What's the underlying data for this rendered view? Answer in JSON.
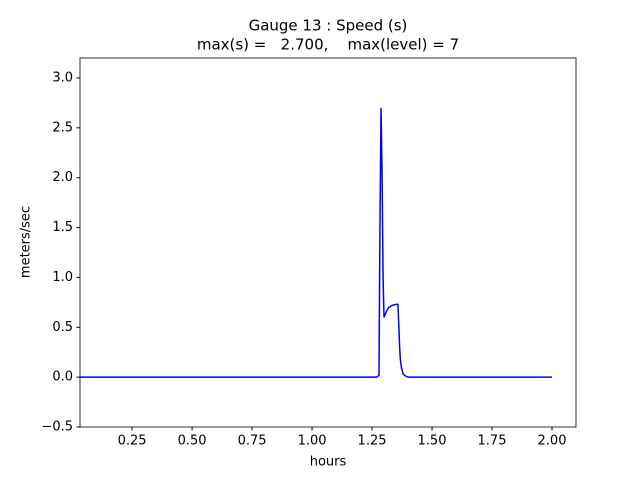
{
  "chart_data": {
    "type": "line",
    "title": "Gauge 13 : Speed (s)",
    "subtitle": "max(s) =   2.700,    max(level) = 7",
    "x_label": "hours",
    "y_label": "meters/sec",
    "x": [
      0.033,
      0.5,
      1.0,
      1.27,
      1.279,
      1.283,
      1.2875,
      1.292,
      1.296,
      1.3,
      1.31,
      1.32,
      1.335,
      1.35,
      1.358,
      1.362,
      1.365,
      1.368,
      1.372,
      1.38,
      1.39,
      1.4,
      1.5,
      1.75,
      2.0
    ],
    "series": [
      {
        "name": "Speed",
        "color": "#0000ff",
        "values": [
          0,
          0,
          0,
          0,
          0.02,
          1.5,
          2.7,
          2.0,
          1.0,
          0.6,
          0.66,
          0.7,
          0.72,
          0.73,
          0.73,
          0.5,
          0.3,
          0.18,
          0.1,
          0.03,
          0.01,
          0,
          0,
          0,
          0
        ]
      }
    ],
    "xlim": [
      0.033,
      2.1
    ],
    "ylim": [
      -0.5,
      3.2
    ],
    "xticks": [
      0.25,
      {
        "value": 0.5,
        "label": "0.50"
      },
      0.75,
      {
        "value": 1,
        "label": "1.00"
      },
      1.25,
      {
        "value": 1.5,
        "label": "1.50"
      },
      1.75,
      {
        "value": 2,
        "label": "2.00"
      }
    ],
    "yticks": [
      {
        "value": -0.5,
        "label": "−0.5"
      },
      {
        "value": 0,
        "label": "0.0"
      },
      0.5,
      {
        "value": 1,
        "label": "1.0"
      },
      1.5,
      {
        "value": 2,
        "label": "2.0"
      },
      2.5,
      {
        "value": 3,
        "label": "3.0"
      }
    ]
  }
}
